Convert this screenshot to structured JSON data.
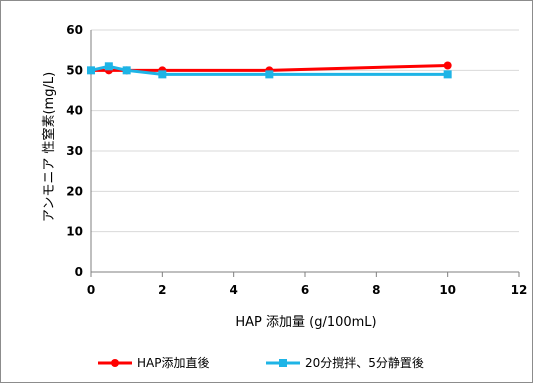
{
  "chart_data": {
    "type": "line",
    "title": "",
    "xlabel": "HAP 添加量 (g/100mL)",
    "ylabel": "アンモニア 性窒素(mg/L)",
    "xlim": [
      0,
      12
    ],
    "ylim": [
      0,
      60
    ],
    "xticks": [
      0,
      2,
      4,
      6,
      8,
      10,
      12
    ],
    "yticks": [
      0,
      10,
      20,
      30,
      40,
      50,
      60
    ],
    "grid": "horizontal",
    "legend_position": "bottom",
    "series": [
      {
        "name": "HAP添加直後",
        "color": "#ff0000",
        "marker": "circle",
        "points": [
          [
            0,
            50
          ],
          [
            0.5,
            50
          ],
          [
            1,
            50
          ],
          [
            2,
            50
          ],
          [
            5,
            50
          ],
          [
            10,
            51.2
          ]
        ]
      },
      {
        "name": "20分撹拌、5分静置後",
        "color": "#1eb4e6",
        "marker": "square",
        "points": [
          [
            0,
            50
          ],
          [
            0.5,
            51
          ],
          [
            1,
            50
          ],
          [
            2,
            49
          ],
          [
            5,
            49
          ],
          [
            10,
            49
          ]
        ]
      }
    ]
  }
}
